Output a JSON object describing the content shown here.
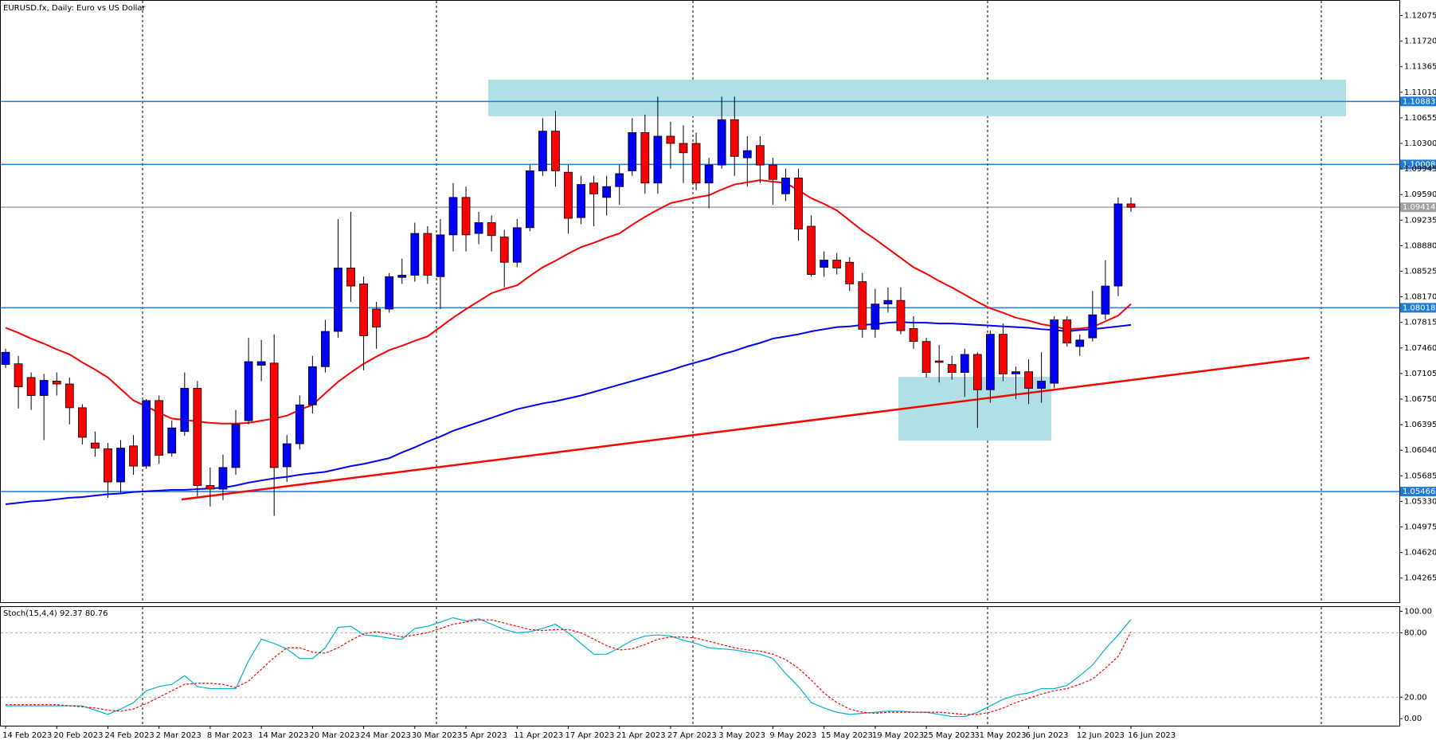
{
  "chart_data": [
    {
      "type": "candlestick",
      "title": "EURUSD.fx, Daily:  Euro vs US Dollar",
      "categories": [
        "14 Feb 2023",
        null,
        null,
        null,
        "20 Feb 2023",
        null,
        null,
        null,
        "24 Feb 2023",
        null,
        null,
        null,
        "2 Mar 2023",
        null,
        null,
        null,
        "8 Mar 2023",
        null,
        null,
        null,
        "14 Mar 2023",
        null,
        null,
        null,
        "20 Mar 2023",
        null,
        null,
        null,
        "24 Mar 2023",
        null,
        null,
        null,
        "30 Mar 2023",
        null,
        null,
        null,
        "5 Apr 2023",
        null,
        null,
        null,
        "11 Apr 2023",
        null,
        null,
        null,
        "17 Apr 2023",
        null,
        null,
        null,
        "21 Apr 2023",
        null,
        null,
        null,
        "27 Apr 2023",
        null,
        null,
        null,
        "3 May 2023",
        null,
        null,
        null,
        "9 May 2023",
        null,
        null,
        null,
        "15 May 2023",
        null,
        null,
        null,
        "19 May 2023",
        null,
        null,
        null,
        "25 May 2023",
        null,
        null,
        null,
        "31 May 2023",
        null,
        null,
        null,
        "6 Jun 2023",
        null,
        null,
        null,
        "12 Jun 2023",
        null,
        null,
        null,
        "16 Jun 2023"
      ],
      "open": [
        1.0723,
        1.0724,
        1.0705,
        1.068,
        1.07,
        1.0696,
        1.0663,
        1.0614,
        1.0606,
        1.056,
        1.061,
        1.0582,
        1.0673,
        1.06,
        1.063,
        1.069,
        1.0555,
        1.055,
        1.058,
        1.0645,
        1.0722,
        1.0725,
        1.0581,
        1.0613,
        1.0667,
        1.072,
        1.0769,
        1.0857,
        1.0835,
        1.08,
        1.08,
        1.0844,
        1.0847,
        1.0905,
        1.0845,
        1.0903,
        1.0955,
        1.0905,
        1.092,
        1.09,
        1.0865,
        1.0913,
        1.0992,
        1.1047,
        1.099,
        1.0927,
        1.0975,
        1.0955,
        1.097,
        1.0992,
        1.1045,
        1.0975,
        1.104,
        1.103,
        1.103,
        1.0975,
        1.1,
        1.1063,
        1.101,
        1.1027,
        1.1,
        1.096,
        1.0982,
        1.0915,
        1.0858,
        1.0868,
        1.0865,
        1.0838,
        1.0772,
        1.0807,
        1.0812,
        1.0773,
        1.0755,
        1.0728,
        1.0723,
        1.0712,
        1.0737,
        1.0688,
        1.0765,
        1.071,
        1.0713,
        1.069,
        1.0697,
        1.0785,
        1.0748,
        1.076,
        1.0793,
        1.0832,
        1.0946
      ],
      "high": [
        1.0745,
        1.0735,
        1.0712,
        1.071,
        1.0712,
        1.0705,
        1.0668,
        1.063,
        1.0614,
        1.0618,
        1.0625,
        1.0675,
        1.068,
        1.0645,
        1.0712,
        1.07,
        1.058,
        1.0598,
        1.066,
        1.076,
        1.0757,
        1.0765,
        1.0625,
        1.068,
        1.0735,
        1.0785,
        1.0925,
        1.0935,
        1.0845,
        1.081,
        1.085,
        1.087,
        1.092,
        1.0915,
        1.0925,
        1.0975,
        1.097,
        1.0935,
        1.093,
        1.091,
        1.0925,
        1.1,
        1.1065,
        1.1075,
        1.1,
        1.0985,
        1.0985,
        1.0985,
        1.1,
        1.1065,
        1.107,
        1.1095,
        1.106,
        1.1055,
        1.1045,
        1.101,
        1.1095,
        1.1095,
        1.104,
        1.104,
        1.101,
        1.0995,
        1.0995,
        1.093,
        1.088,
        1.0878,
        1.0872,
        1.085,
        1.0828,
        1.083,
        1.083,
        1.079,
        1.076,
        1.075,
        1.0735,
        1.0745,
        1.074,
        1.077,
        1.078,
        1.072,
        1.073,
        1.074,
        1.079,
        1.079,
        1.0765,
        1.0825,
        1.0868,
        1.0955,
        1.0955
      ],
      "low": [
        1.0718,
        1.0662,
        1.066,
        1.0618,
        1.068,
        1.064,
        1.0612,
        1.0595,
        1.0538,
        1.0545,
        1.057,
        1.0578,
        1.0585,
        1.0595,
        1.0624,
        1.054,
        1.0526,
        1.0535,
        1.057,
        1.064,
        1.07,
        1.0513,
        1.056,
        1.0605,
        1.0655,
        1.0712,
        1.076,
        1.081,
        1.0715,
        1.0745,
        1.0795,
        1.0835,
        1.0838,
        1.0835,
        1.08,
        1.088,
        1.088,
        1.089,
        1.088,
        1.083,
        1.0858,
        1.0908,
        1.0985,
        1.097,
        1.0905,
        1.0918,
        1.0915,
        1.093,
        1.0945,
        1.0985,
        1.096,
        1.096,
        1.0995,
        1.0975,
        1.0965,
        1.094,
        1.0995,
        1.0985,
        1.097,
        1.0975,
        1.0945,
        1.095,
        1.0895,
        1.0845,
        1.0845,
        1.0848,
        1.0825,
        1.076,
        1.076,
        1.0795,
        1.0765,
        1.0745,
        1.0705,
        1.0698,
        1.0702,
        1.0678,
        1.0635,
        1.067,
        1.07,
        1.0675,
        1.0668,
        1.067,
        1.069,
        1.0748,
        1.0735,
        1.0755,
        1.0785,
        1.0818,
        1.0935
      ],
      "close": [
        1.074,
        1.0692,
        1.068,
        1.0701,
        1.0696,
        1.0663,
        1.0622,
        1.0607,
        1.056,
        1.0607,
        1.0582,
        1.0673,
        1.0597,
        1.0635,
        1.069,
        1.0555,
        1.055,
        1.058,
        1.064,
        1.0727,
        1.0727,
        1.058,
        1.0613,
        1.0667,
        1.072,
        1.0769,
        1.0857,
        1.0832,
        1.0763,
        1.0775,
        1.0845,
        1.0847,
        1.0905,
        1.0847,
        1.0903,
        1.0955,
        1.0903,
        1.092,
        1.0902,
        1.0865,
        1.0913,
        1.0992,
        1.1047,
        1.0992,
        1.0926,
        1.0973,
        1.096,
        1.097,
        1.0988,
        1.1045,
        1.0975,
        1.104,
        1.103,
        1.1017,
        1.0975,
        1.1,
        1.1063,
        1.1012,
        1.102,
        1.1,
        1.098,
        1.0982,
        1.0911,
        1.0848,
        1.0868,
        1.0857,
        1.0835,
        1.0772,
        1.0807,
        1.0812,
        1.077,
        1.0755,
        1.0712,
        1.0726,
        1.0712,
        1.0737,
        1.0688,
        1.0765,
        1.071,
        1.0713,
        1.069,
        1.07,
        1.0785,
        1.0753,
        1.0757,
        1.0792,
        1.0832,
        1.0946,
        1.09414
      ],
      "up_color": "#0000ff",
      "down_color": "#ff0000",
      "lines": [
        {
          "color": "#ff0000",
          "values": [
            1.0774,
            1.0767,
            1.0759,
            1.0752,
            1.0744,
            1.0737,
            1.0726,
            1.0716,
            1.0705,
            1.0689,
            1.0673,
            1.0665,
            1.0656,
            1.0648,
            1.0646,
            1.0644,
            1.0642,
            1.0641,
            1.0641,
            1.0642,
            1.0645,
            1.0648,
            1.0652,
            1.066,
            1.0667,
            1.0683,
            1.0699,
            1.0712,
            1.0724,
            1.0734,
            1.0743,
            1.0749,
            1.0756,
            1.0762,
            1.0775,
            1.0788,
            1.08,
            1.0811,
            1.0822,
            1.0828,
            1.0833,
            1.0846,
            1.0858,
            1.0867,
            1.0877,
            1.0886,
            1.0892,
            1.0899,
            1.0905,
            1.0917,
            1.0928,
            1.0938,
            1.0947,
            1.0951,
            1.0955,
            1.0958,
            1.0966,
            1.0973,
            1.0976,
            1.0979,
            1.0977,
            1.0975,
            1.0965,
            1.0954,
            1.0946,
            1.0937,
            1.0923,
            1.0909,
            1.0897,
            1.0884,
            1.0871,
            1.0858,
            1.0849,
            1.0839,
            1.083,
            1.082,
            1.081,
            1.0801,
            1.0795,
            1.0788,
            1.0784,
            1.0779,
            1.0776,
            1.0772,
            1.0773,
            1.0775,
            1.0783,
            1.0791,
            1.0807
          ]
        },
        {
          "color": "#0000ff",
          "values": [
            1.0529,
            1.0531,
            1.0533,
            1.0534,
            1.0536,
            1.0538,
            1.0539,
            1.0541,
            1.0543,
            1.0544,
            1.0546,
            1.0547,
            1.0548,
            1.0549,
            1.0549,
            1.055,
            1.0551,
            1.0552,
            1.0555,
            1.0559,
            1.0562,
            1.0565,
            1.0567,
            1.057,
            1.0572,
            1.0574,
            1.0578,
            1.0582,
            1.0585,
            1.0589,
            1.0593,
            1.0601,
            1.0608,
            1.0616,
            1.0623,
            1.0631,
            1.0637,
            1.0643,
            1.0649,
            1.0655,
            1.0661,
            1.0665,
            1.0669,
            1.0672,
            1.0676,
            1.068,
            1.0685,
            1.069,
            1.0695,
            1.07,
            1.0705,
            1.071,
            1.0715,
            1.0721,
            1.0726,
            1.0731,
            1.0737,
            1.0742,
            1.0748,
            1.0753,
            1.0759,
            1.0762,
            1.0765,
            1.0769,
            1.0772,
            1.0775,
            1.0776,
            1.0778,
            1.0779,
            1.0781,
            1.0782,
            1.0781,
            1.0781,
            1.078,
            1.078,
            1.0779,
            1.0778,
            1.0777,
            1.0776,
            1.0775,
            1.0774,
            1.0772,
            1.0771,
            1.0769,
            1.0771,
            1.0772,
            1.0774,
            1.0776,
            1.0778
          ]
        }
      ],
      "levels": [
        {
          "value": 1.10883,
          "color": "#1e7bd6"
        },
        {
          "value": 1.10008,
          "color": "#1e7bd6"
        },
        {
          "value": 1.09414,
          "color": "#a0a0a0"
        },
        {
          "value": 1.08018,
          "color": "#1e7bd6"
        },
        {
          "value": 1.05466,
          "color": "#1e7bd6"
        }
      ],
      "ylim": [
        1.0393,
        1.1228
      ],
      "yticks": [
        1.12075,
        {
          "value": 1.1172,
          "label": "1.11720"
        },
        1.11365,
        {
          "value": 1.1101,
          "label": "1.11010"
        },
        1.10655,
        {
          "value": 1.103,
          "label": "1.10300"
        },
        1.09945,
        {
          "value": 1.0959,
          "label": "1.09590"
        },
        1.09235,
        {
          "value": 1.0888,
          "label": "1.08880"
        },
        1.08525,
        {
          "value": 1.0817,
          "label": "1.08170"
        },
        1.07815,
        {
          "value": 1.0746,
          "label": "1.07460"
        },
        1.07105,
        {
          "value": 1.0675,
          "label": "1.06750"
        },
        1.06395,
        {
          "value": 1.0604,
          "label": "1.06040"
        },
        1.05685,
        {
          "value": 1.0533,
          "label": "1.05330"
        },
        1.04975,
        {
          "value": 1.0462,
          "label": "1.04620"
        },
        1.04265
      ]
    },
    {
      "type": "line",
      "title": "Stoch(15,4,4) 92.37 80.76",
      "series": [
        {
          "color": "#00b4c8",
          "values": [
            12,
            12,
            12,
            12,
            12,
            12,
            12,
            8,
            4,
            9,
            15,
            26,
            30,
            32,
            40,
            30,
            28,
            28,
            28,
            54,
            74,
            70,
            65,
            56,
            56,
            66,
            85,
            86,
            78,
            77,
            75,
            74,
            84,
            86,
            90,
            94,
            91,
            93,
            88,
            83,
            80,
            81,
            84,
            88,
            80,
            70,
            60,
            60,
            66,
            73,
            77,
            78,
            77,
            73,
            70,
            66,
            65,
            64,
            62,
            60,
            56,
            42,
            30,
            15,
            10,
            6,
            4,
            5,
            6,
            7,
            7,
            6,
            6,
            4,
            2,
            2,
            6,
            12,
            18,
            22,
            24,
            28,
            28,
            31,
            40,
            50,
            65,
            78,
            92.37
          ]
        },
        {
          "color": "#ff0000",
          "dash": true,
          "values": [
            13,
            13,
            13,
            13,
            13,
            12,
            11,
            10,
            8,
            7,
            9,
            14,
            20,
            26,
            32,
            33,
            33,
            32,
            29,
            35,
            46,
            57,
            66,
            66,
            62,
            61,
            66,
            73,
            79,
            81,
            79,
            76,
            78,
            80,
            84,
            88,
            90,
            92,
            92,
            89,
            86,
            83,
            82,
            83,
            83,
            80,
            74,
            68,
            64,
            65,
            69,
            74,
            76,
            76,
            75,
            72,
            69,
            66,
            64,
            63,
            60,
            55,
            47,
            36,
            24,
            15,
            9,
            6,
            5,
            6,
            6,
            6,
            6,
            6,
            5,
            4,
            4,
            6,
            10,
            15,
            19,
            23,
            26,
            28,
            32,
            37,
            47,
            58,
            80.76
          ]
        }
      ],
      "levels": [
        80,
        20
      ],
      "ylim": [
        -6.5,
        104
      ],
      "yticks": [
        {
          "value": 100,
          "label": "100.00"
        },
        {
          "value": 80,
          "label": "80.00"
        },
        {
          "value": 20,
          "label": "20.00"
        },
        {
          "value": 0,
          "label": "0.00"
        }
      ]
    }
  ]
}
